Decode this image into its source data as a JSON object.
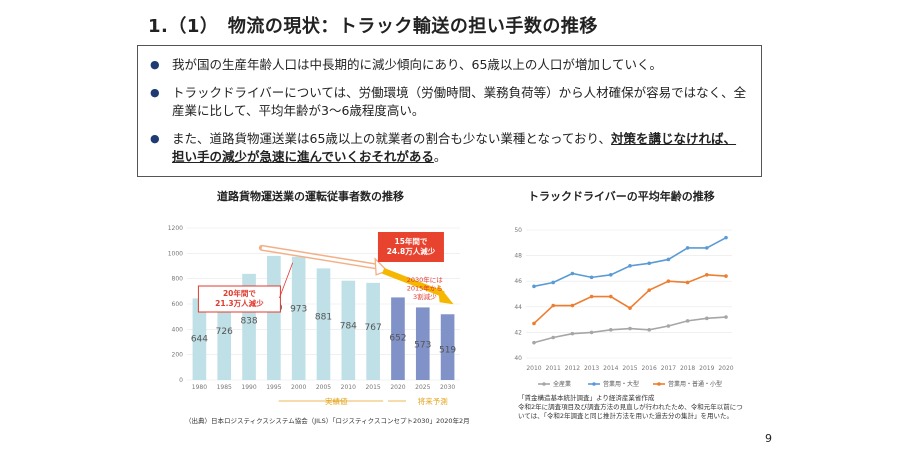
{
  "page": {
    "title": "1.（1）　物流の現状：トラック輸送の担い手数の推移",
    "page_number": "9"
  },
  "bullets": [
    {
      "text": "我が国の生産年齢人口は中長期的に減少傾向にあり、65歳以上の人口が増加していく。"
    },
    {
      "text": "トラックドライバーについては、労働環境（労働時間、業務負荷等）から人材確保が容易ではなく、全産業に比して、平均年齢が3～6歳程度高い。"
    },
    {
      "text_plain": "また、道路貨物運送業は65歳以上の就業者の割合も少ない業種となっており、",
      "text_emph": "対策を講じなければ、担い手の減少が急速に進んでいくおそれがある",
      "text_end": "。"
    }
  ],
  "left_chart_title": "道路貨物運送業の運転従事者数の推移",
  "right_chart_title": "トラックドライバーの平均年齢の推移",
  "chart_data": [
    {
      "type": "bar",
      "categories": [
        "1980",
        "1985",
        "1990",
        "1995",
        "2000",
        "2005",
        "2010",
        "2015",
        "2020",
        "2025",
        "2030"
      ],
      "values": [
        644,
        726,
        838,
        980,
        973,
        881,
        784,
        767,
        652,
        573,
        519
      ],
      "ylim": [
        0,
        1200
      ],
      "yticks": [
        0,
        200,
        400,
        600,
        800,
        1000,
        1200
      ],
      "colors": {
        "actual": "#bfe0e6",
        "forecast": "#8092c8"
      },
      "forecast_start_index": 8,
      "annotations": {
        "left_callout": "20年間で\n21.3万人減少",
        "right_callout": "15年間で\n24.8万人減少",
        "note": "2030年には\n2015年から\n3割減少",
        "actual_label": "実績値",
        "forecast_label": "将来予測"
      },
      "source": "（出典）日本ロジスティクスシステム協会（JILS）「ロジスティクスコンセプト2030」2020年2月"
    },
    {
      "type": "line",
      "x": [
        "2010",
        "2011",
        "2012",
        "2013",
        "2014",
        "2015",
        "2016",
        "2017",
        "2018",
        "2019",
        "2020"
      ],
      "ylim": [
        40,
        50
      ],
      "yticks": [
        40,
        42,
        44,
        46,
        48,
        50
      ],
      "series": [
        {
          "name": "全産業",
          "color": "#a6a6a6",
          "values": [
            41.2,
            41.6,
            41.9,
            42.0,
            42.2,
            42.3,
            42.2,
            42.5,
            42.9,
            43.1,
            43.2
          ]
        },
        {
          "name": "営業用・大型",
          "color": "#5b9bd5",
          "values": [
            45.6,
            45.9,
            46.6,
            46.3,
            46.5,
            47.2,
            47.4,
            47.7,
            48.6,
            48.6,
            49.4
          ]
        },
        {
          "name": "営業用・普通・小型",
          "color": "#ed7d31",
          "values": [
            42.7,
            44.1,
            44.1,
            44.8,
            44.8,
            43.9,
            45.3,
            46.0,
            45.9,
            46.5,
            46.4
          ]
        }
      ],
      "source_lines": [
        "「賃金構造基本統計調査」より経済産業省作成",
        "令和2年に調査項目及び調査方法の見直しが行われたため、令和元年以前につ",
        "いては、「令和2年調査と同じ推計方法を用いた過去分の集計」を用いた。"
      ]
    }
  ]
}
